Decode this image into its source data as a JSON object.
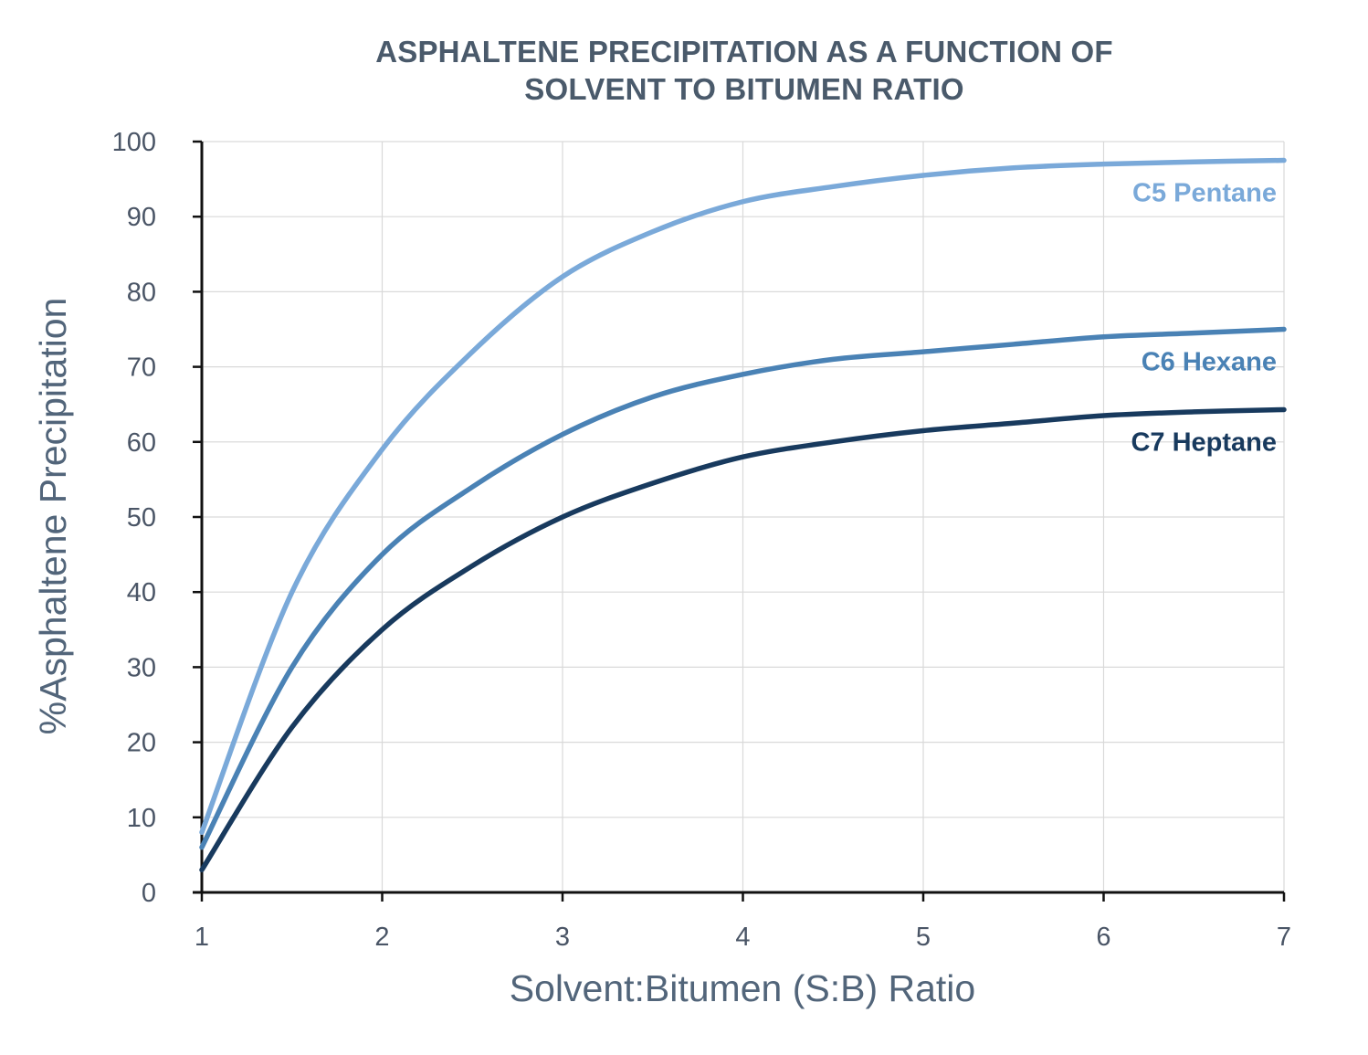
{
  "chart_data": {
    "type": "line",
    "title_lines": [
      "ASPHALTENE PRECIPITATION AS A FUNCTION OF",
      "SOLVENT TO BITUMEN RATIO"
    ],
    "xlabel": "Solvent:Bitumen (S:B) Ratio",
    "ylabel": "%Asphaltene Precipitation",
    "xlim": [
      1,
      7
    ],
    "ylim": [
      0,
      100
    ],
    "xticks": [
      1,
      2,
      3,
      4,
      5,
      6,
      7
    ],
    "yticks": [
      0,
      10,
      20,
      30,
      40,
      50,
      60,
      70,
      80,
      90,
      100
    ],
    "x_tick_labels": [
      "1",
      "2",
      "3",
      "4",
      "5",
      "6",
      "7"
    ],
    "y_tick_labels": [
      "0",
      "10",
      "20",
      "30",
      "40",
      "50",
      "60",
      "70",
      "80",
      "90",
      "100"
    ],
    "grid": true,
    "series": [
      {
        "name": "C5 Pentane",
        "color": "#7aa9d9",
        "x": [
          1,
          1.5,
          2,
          2.5,
          3,
          3.5,
          4,
          4.5,
          5,
          5.5,
          6,
          6.5,
          7
        ],
        "y": [
          8,
          40,
          59,
          72,
          82,
          88,
          92,
          94,
          95.5,
          96.5,
          97,
          97.3,
          97.5
        ]
      },
      {
        "name": "C6 Hexane",
        "color": "#4a82b5",
        "x": [
          1,
          1.5,
          2,
          2.5,
          3,
          3.5,
          4,
          4.5,
          5,
          5.5,
          6,
          6.5,
          7
        ],
        "y": [
          6,
          30,
          45,
          54,
          61,
          66,
          69,
          71,
          72,
          73,
          74,
          74.5,
          75
        ]
      },
      {
        "name": "C7 Heptane",
        "color": "#183a5e",
        "x": [
          1,
          1.5,
          2,
          2.5,
          3,
          3.5,
          4,
          4.5,
          5,
          5.5,
          6,
          6.5,
          7
        ],
        "y": [
          3,
          22,
          35,
          43.5,
          50,
          54.5,
          58,
          60,
          61.5,
          62.5,
          63.5,
          64,
          64.3
        ]
      }
    ]
  }
}
